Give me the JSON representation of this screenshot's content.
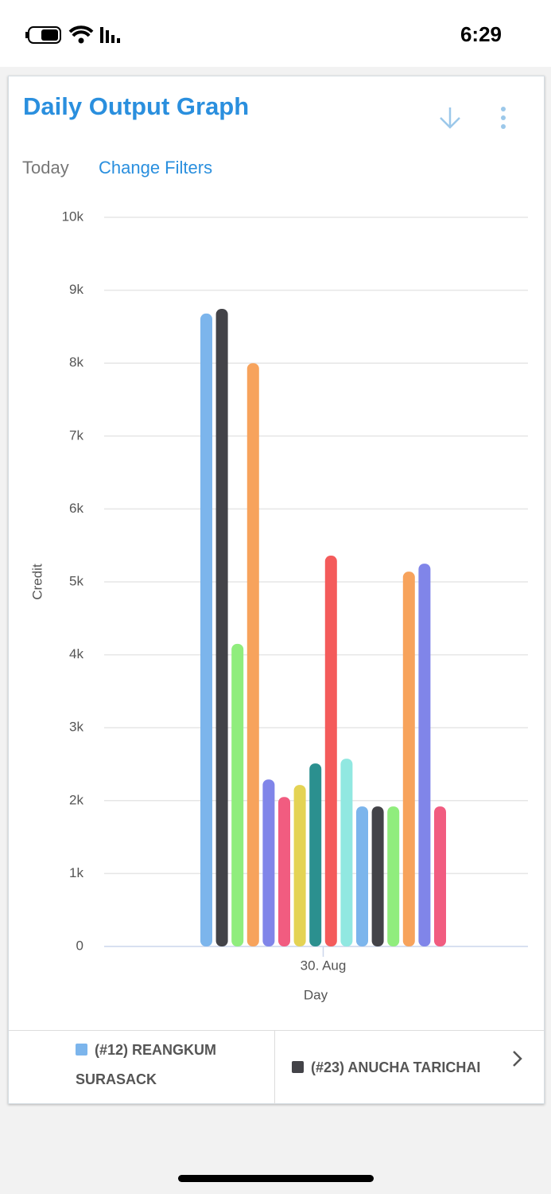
{
  "status_bar": {
    "time": "6:29"
  },
  "card": {
    "title": "Daily Output Graph",
    "tabs": [
      "Today",
      "Change Filters"
    ]
  },
  "chart_data": {
    "type": "bar",
    "x_label": "Day",
    "y_label": "Credit",
    "categories": [
      "30. Aug"
    ],
    "ylim": [
      0,
      10000
    ],
    "yticks": [
      0,
      {
        "value": 1000,
        "label": "1k"
      },
      {
        "value": 2000,
        "label": "2k"
      },
      {
        "value": 3000,
        "label": "3k"
      },
      {
        "value": 4000,
        "label": "4k"
      },
      {
        "value": 5000,
        "label": "5k"
      },
      {
        "value": 6000,
        "label": "6k"
      },
      {
        "value": 7000,
        "label": "7k"
      },
      {
        "value": 8000,
        "label": "8k"
      },
      {
        "value": 9000,
        "label": "9k"
      },
      {
        "value": 10000,
        "label": "10k"
      }
    ],
    "grid": true,
    "series": [
      {
        "name": "(#12) REANGKUM SURASACK",
        "color": "#7cb5ec",
        "values": [
          8680
        ]
      },
      {
        "name": "(#23) ANUCHA TARICHAI",
        "color": "#434348",
        "values": [
          8745
        ]
      },
      {
        "color": "#90ed7d",
        "values": [
          4150
        ]
      },
      {
        "color": "#f7a35c",
        "values": [
          8000
        ]
      },
      {
        "color": "#8085e9",
        "values": [
          2290
        ]
      },
      {
        "color": "#f15c80",
        "values": [
          2050
        ]
      },
      {
        "color": "#e4d354",
        "values": [
          2215
        ]
      },
      {
        "color": "#2b908f",
        "values": [
          2510
        ]
      },
      {
        "color": "#f45b5b",
        "values": [
          5360
        ]
      },
      {
        "color": "#91e8e1",
        "values": [
          2575
        ]
      },
      {
        "color": "#7cb5ec",
        "values": [
          1920
        ]
      },
      {
        "color": "#434348",
        "values": [
          1920
        ]
      },
      {
        "color": "#90ed7d",
        "values": [
          1920
        ]
      },
      {
        "color": "#f7a35c",
        "values": [
          5140
        ]
      },
      {
        "color": "#8085e9",
        "values": [
          5250
        ]
      },
      {
        "color": "#f15c80",
        "values": [
          1920
        ]
      }
    ]
  }
}
